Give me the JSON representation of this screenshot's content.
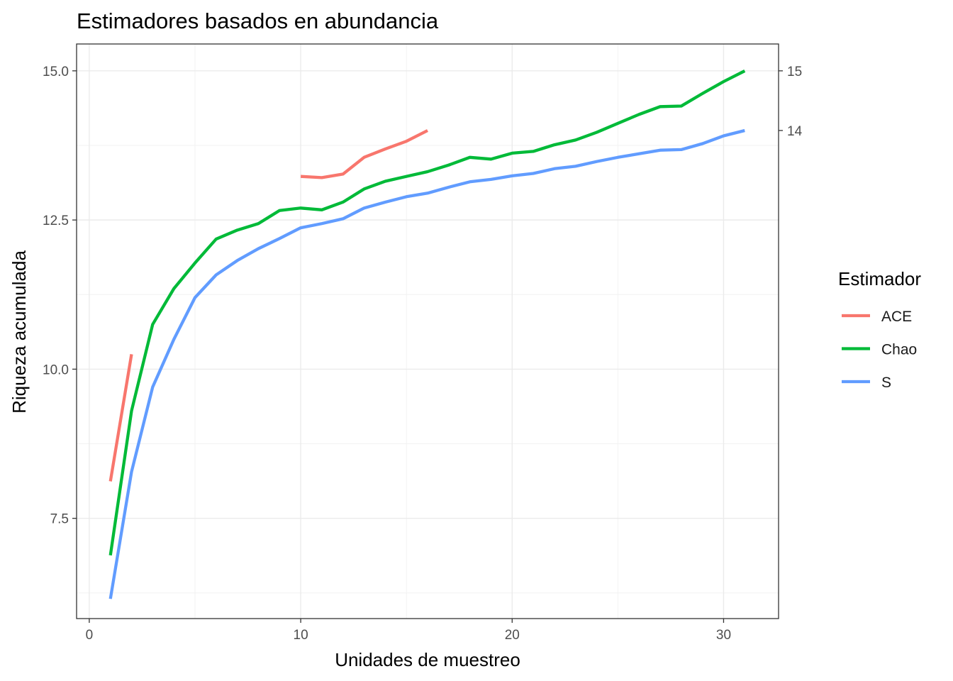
{
  "chart_data": {
    "type": "line",
    "title": "Estimadores basados en abundancia",
    "xlabel": "Unidades de muestreo",
    "ylabel": "Riqueza acumulada",
    "xlim": [
      -0.6,
      32.6
    ],
    "ylim": [
      5.82,
      15.45
    ],
    "x_ticks": [
      0,
      10,
      20,
      30
    ],
    "y_ticks": [
      7.5,
      10.0,
      12.5,
      15.0
    ],
    "y_tick_labels": [
      "7.5",
      "10.0",
      "12.5",
      "15.0"
    ],
    "y2_ticks": [
      14,
      15
    ],
    "y2_tick_labels": [
      "14",
      "15"
    ],
    "grid": true,
    "legend": {
      "title": "Estimador",
      "position": "right"
    },
    "series": [
      {
        "name": "ACE",
        "color": "#F8766D",
        "x": [
          1,
          2,
          null,
          10,
          11,
          12,
          13,
          14,
          15,
          16
        ],
        "y": [
          8.12,
          10.25,
          null,
          13.23,
          13.21,
          13.27,
          13.55,
          13.69,
          13.82,
          14.0
        ]
      },
      {
        "name": "Chao",
        "color": "#00BA38",
        "x": [
          1,
          2,
          3,
          4,
          5,
          6,
          7,
          8,
          9,
          10,
          11,
          12,
          13,
          14,
          15,
          16,
          17,
          18,
          19,
          20,
          21,
          22,
          23,
          24,
          25,
          26,
          27,
          28,
          29,
          30,
          31
        ],
        "y": [
          6.88,
          9.3,
          10.75,
          11.35,
          11.78,
          12.18,
          12.33,
          12.44,
          12.66,
          12.7,
          12.67,
          12.8,
          13.02,
          13.15,
          13.23,
          13.31,
          13.42,
          13.55,
          13.52,
          13.62,
          13.65,
          13.76,
          13.84,
          13.97,
          14.12,
          14.27,
          14.4,
          14.41,
          14.62,
          14.82,
          15.0
        ]
      },
      {
        "name": "S",
        "color": "#619CFF",
        "x": [
          1,
          2,
          3,
          4,
          5,
          6,
          7,
          8,
          9,
          10,
          11,
          12,
          13,
          14,
          15,
          16,
          17,
          18,
          19,
          20,
          21,
          22,
          23,
          24,
          25,
          26,
          27,
          28,
          29,
          30,
          31
        ],
        "y": [
          6.15,
          8.28,
          9.7,
          10.5,
          11.2,
          11.58,
          11.82,
          12.02,
          12.19,
          12.37,
          12.44,
          12.52,
          12.7,
          12.8,
          12.89,
          12.95,
          13.05,
          13.14,
          13.18,
          13.24,
          13.28,
          13.36,
          13.4,
          13.48,
          13.55,
          13.61,
          13.67,
          13.68,
          13.78,
          13.91,
          14.0
        ]
      }
    ]
  }
}
